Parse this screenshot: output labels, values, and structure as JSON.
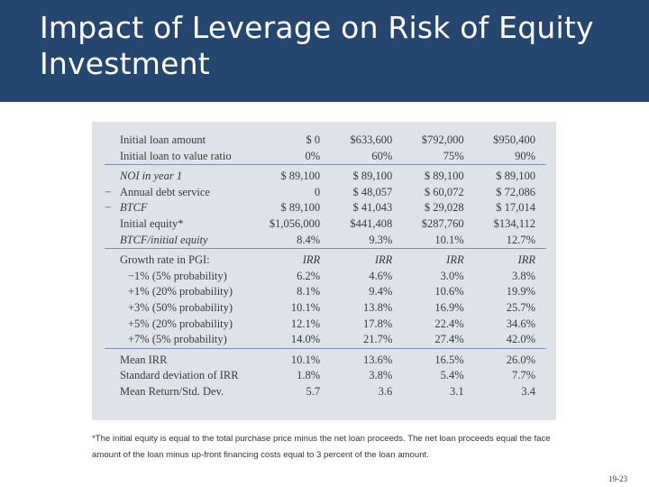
{
  "slide": {
    "title": "Impact of Leverage on Risk of Equity Investment",
    "page_number": "19-23",
    "footnote": "*The initial equity is equal to the total purchase price minus the net loan proceeds. The net loan proceeds equal the face amount of the loan minus up-front financing costs equal to 3 percent of the loan amount."
  },
  "table": {
    "rows": [
      {
        "label": "Initial loan amount",
        "op": "",
        "values": [
          "$ 0",
          "$633,600",
          "$792,000",
          "$950,400"
        ]
      },
      {
        "label": "Initial loan to value ratio",
        "op": "",
        "values": [
          "0%",
          "60%",
          "75%",
          "90%"
        ]
      },
      {
        "label": "NOI in year 1",
        "op": "",
        "values": [
          "$ 89,100",
          "$ 89,100",
          "$ 89,100",
          "$ 89,100"
        ]
      },
      {
        "label": "Annual debt service",
        "op": "−",
        "values": [
          "0",
          "$ 48,057",
          "$ 60,072",
          "$ 72,086"
        ]
      },
      {
        "label": "BTCF",
        "op": "−",
        "values": [
          "$ 89,100",
          "$ 41,043",
          "$ 29,028",
          "$ 17,014"
        ]
      },
      {
        "label": "Initial equity*",
        "op": "",
        "values": [
          "$1,056,000",
          "$441,408",
          "$287,760",
          "$134,112"
        ]
      },
      {
        "label": "BTCF/initial equity",
        "op": "",
        "values": [
          "8.4%",
          "9.3%",
          "10.1%",
          "12.7%"
        ]
      },
      {
        "label": "Growth rate in PGI:",
        "op": "",
        "values": [
          "IRR",
          "IRR",
          "IRR",
          "IRR"
        ]
      },
      {
        "label": "−1% (5% probability)",
        "op": "",
        "values": [
          "6.2%",
          "4.6%",
          "3.0%",
          "3.8%"
        ]
      },
      {
        "label": "+1% (20% probability)",
        "op": "",
        "values": [
          "8.1%",
          "9.4%",
          "10.6%",
          "19.9%"
        ]
      },
      {
        "label": "+3% (50% probability)",
        "op": "",
        "values": [
          "10.1%",
          "13.8%",
          "16.9%",
          "25.7%"
        ]
      },
      {
        "label": "+5% (20% probability)",
        "op": "",
        "values": [
          "12.1%",
          "17.8%",
          "22.4%",
          "34.6%"
        ]
      },
      {
        "label": "+7% (5% probability)",
        "op": "",
        "values": [
          "14.0%",
          "21.7%",
          "27.4%",
          "42.0%"
        ]
      },
      {
        "label": "Mean IRR",
        "op": "",
        "values": [
          "10.1%",
          "13.6%",
          "16.5%",
          "26.0%"
        ]
      },
      {
        "label": "Standard deviation of IRR",
        "op": "",
        "values": [
          "1.8%",
          "3.8%",
          "5.4%",
          "7.7%"
        ]
      },
      {
        "label": "Mean Return/Std. Dev.",
        "op": "",
        "values": [
          "5.7",
          "3.6",
          "3.1",
          "3.4"
        ]
      }
    ]
  },
  "colors": {
    "title_bar": "#24466f",
    "table_background": "#dfe2e6",
    "rule": "#7e93b4"
  }
}
